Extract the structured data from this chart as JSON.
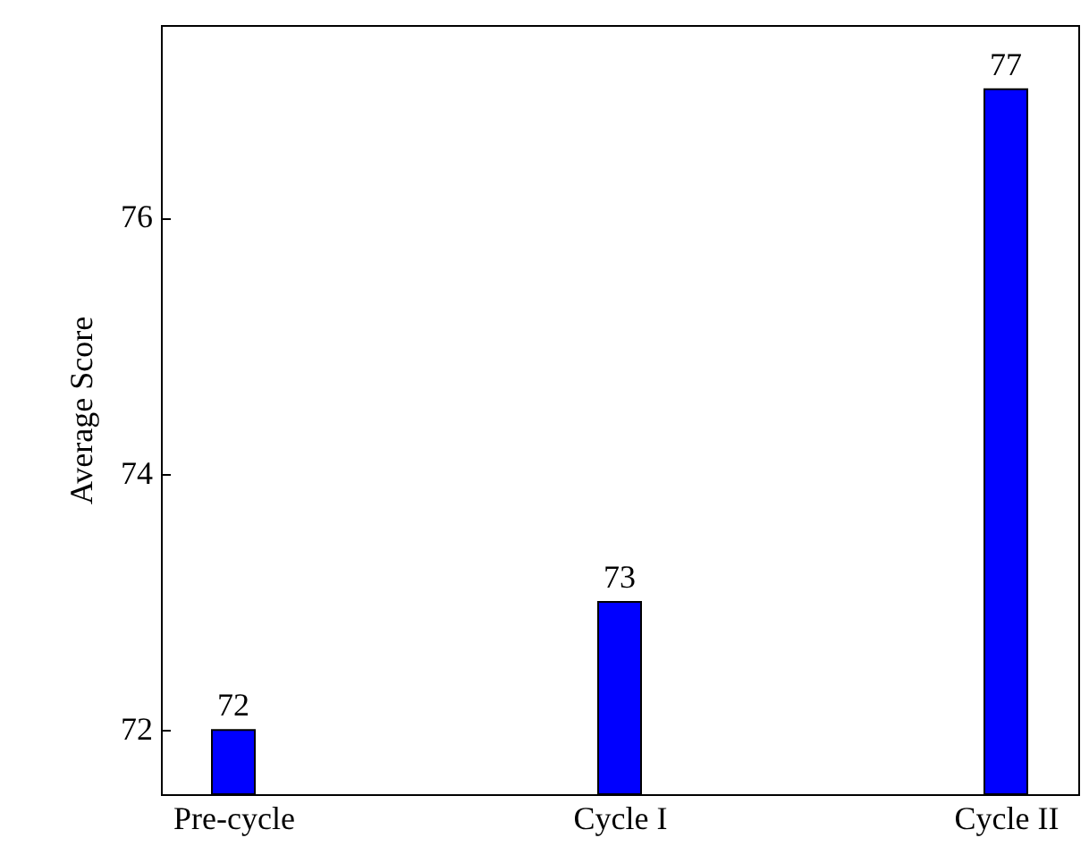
{
  "chart_data": {
    "type": "bar",
    "ylabel": "Average Score",
    "categories": [
      "Pre-cycle",
      "Cycle I",
      "Cycle II"
    ],
    "values": [
      72,
      73,
      77
    ],
    "color": "#0000ff",
    "ylim": [
      71.5,
      77.5
    ],
    "yticks": [
      72,
      74,
      76
    ],
    "data_labels": true
  }
}
